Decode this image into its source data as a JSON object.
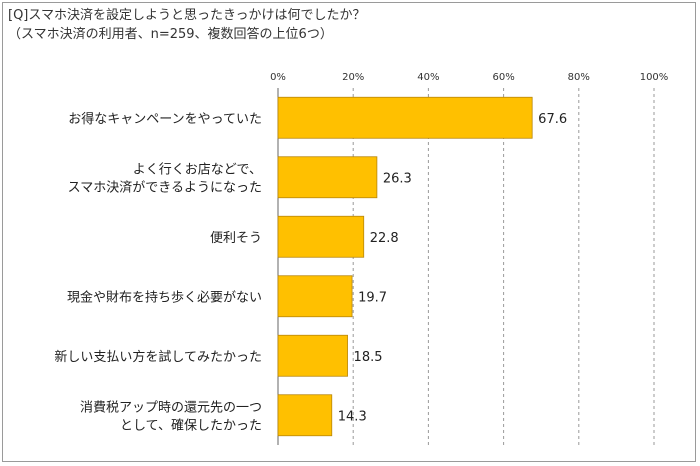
{
  "chart_data": {
    "type": "bar",
    "orientation": "horizontal",
    "title": "[Q]スマホ決済を設定しようと思ったきっかけは何でしたか？",
    "subtitle": "（スマホ決済の利用者、n=259、複数回答の上位6つ）",
    "categories": [
      [
        "お得なキャンペーンをやっていた"
      ],
      [
        "よく行くお店などで、",
        "スマホ決済ができるようになった"
      ],
      [
        "便利そう"
      ],
      [
        "現金や財布を持ち歩く必要がない"
      ],
      [
        "新しい支払い方を試してみたかった"
      ],
      [
        "消費税アップ時の還元先の一つ",
        "として、確保したかった"
      ]
    ],
    "values": [
      67.6,
      26.3,
      22.8,
      19.7,
      18.5,
      14.3
    ],
    "value_labels": [
      "67.6",
      "26.3",
      "22.8",
      "19.7",
      "18.5",
      "14.3"
    ],
    "xlim": [
      0,
      100
    ],
    "x_ticks": [
      "0%",
      "20%",
      "40%",
      "60%",
      "80%",
      "100%"
    ],
    "grid": true,
    "colors": {
      "bar": "#FFC000",
      "bar_edge": "#B8860B",
      "grid": "#9a9a9a",
      "axis": "#666666"
    }
  }
}
